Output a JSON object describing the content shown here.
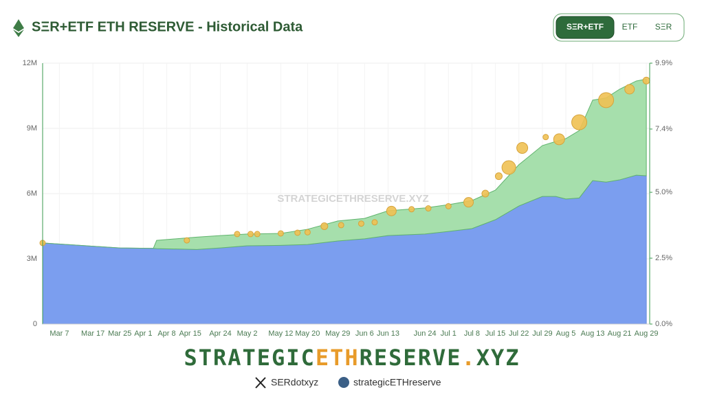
{
  "header": {
    "title": "SΞR+ETF ETH RESERVE - Historical Data",
    "buttons": [
      "SΞR+ETF",
      "ETF",
      "SΞR"
    ]
  },
  "chart_data": {
    "type": "stacked-area",
    "watermark": "STRATEGICETHRESERVE.XYZ",
    "x": [
      "Mar 2",
      "Mar 25",
      "Apr 4",
      "Apr 5",
      "Apr 17",
      "Apr 24",
      "May 2",
      "May 12",
      "May 20",
      "May 29",
      "Jun 6",
      "Jun 13",
      "Jun 24",
      "Jul 1",
      "Jul 8",
      "Jul 15",
      "Jul 22",
      "Jul 29",
      "Aug 2",
      "Aug 5",
      "Aug 9",
      "Aug 13",
      "Aug 17",
      "Aug 21",
      "Aug 26",
      "Aug 29"
    ],
    "series": [
      {
        "color": "#7b9eef",
        "values": [
          3.73,
          3.5,
          3.48,
          3.47,
          3.43,
          3.5,
          3.6,
          3.62,
          3.66,
          3.82,
          3.92,
          4.07,
          4.14,
          4.26,
          4.39,
          4.8,
          5.43,
          5.87,
          5.87,
          5.75,
          5.8,
          6.6,
          6.53,
          6.63,
          6.85,
          6.82
        ]
      },
      {
        "color": "#a6dfac",
        "values": [
          0,
          0,
          0,
          0.38,
          0.57,
          0.57,
          0.54,
          0.55,
          0.7,
          0.92,
          0.94,
          1.14,
          1.2,
          1.23,
          1.29,
          1.36,
          1.9,
          2.34,
          2.53,
          2.78,
          3.1,
          3.7,
          3.87,
          4.17,
          4.33,
          4.45
        ]
      }
    ],
    "bubbles": {
      "color": "#f0c153",
      "x": [
        "Mar 2",
        "Apr 14",
        "Apr 29",
        "May 3",
        "May 5",
        "May 12",
        "May 17",
        "May 20",
        "May 25",
        "May 30",
        "Jun 5",
        "Jun 9",
        "Jun 14",
        "Jun 20",
        "Jun 25",
        "Jul 1",
        "Jul 7",
        "Jul 12",
        "Jul 16",
        "Jul 19",
        "Jul 23",
        "Jul 30",
        "Aug 3",
        "Aug 9",
        "Aug 17",
        "Aug 24",
        "Aug 29"
      ],
      "values": [
        3.73,
        3.85,
        4.14,
        4.14,
        4.14,
        4.17,
        4.2,
        4.22,
        4.5,
        4.55,
        4.62,
        4.68,
        5.2,
        5.28,
        5.32,
        5.42,
        5.6,
        6.0,
        6.8,
        7.2,
        8.1,
        8.6,
        8.5,
        9.28,
        10.3,
        10.8,
        11.2
      ],
      "sizes": [
        4,
        4,
        4,
        4,
        4,
        4,
        4,
        4,
        5,
        4,
        4,
        4,
        7,
        4,
        4,
        4,
        7,
        5,
        5,
        10,
        8,
        4,
        8,
        11,
        11,
        7,
        5
      ]
    },
    "xlim": [
      "Mar 2",
      "Aug 30"
    ],
    "xticks": [
      "Mar 7",
      "Mar 17",
      "Mar 25",
      "Apr 1",
      "Apr 8",
      "Apr 15",
      "Apr 24",
      "May 2",
      "May 12",
      "May 20",
      "May 29",
      "Jun 6",
      "Jun 13",
      "Jun 24",
      "Jul 1",
      "Jul 8",
      "Jul 15",
      "Jul 22",
      "Jul 29",
      "Aug 5",
      "Aug 13",
      "Aug 21",
      "Aug 29"
    ],
    "ylim": [
      0,
      12
    ],
    "yticks": [
      {
        "value": 0,
        "label": "0"
      },
      {
        "value": 3,
        "label": "3M"
      },
      {
        "value": 6,
        "label": "6M"
      },
      {
        "value": 9,
        "label": "9M"
      },
      {
        "value": 12,
        "label": "12M"
      }
    ],
    "y2lim": [
      0,
      9.9
    ],
    "y2ticks": [
      {
        "value": 0,
        "label": "0.0%"
      },
      {
        "value": 2.5,
        "label": "2.5%"
      },
      {
        "value": 5,
        "label": "5.0%"
      },
      {
        "value": 7.4,
        "label": "7.4%"
      },
      {
        "value": 9.9,
        "label": "9.9%"
      }
    ],
    "grid": true
  },
  "footer": {
    "brand": [
      "STRATEGIC",
      "ETH",
      "RESERVE",
      ".",
      "XYZ"
    ],
    "social": [
      "SERdotxyz",
      "strategicETHreserve"
    ]
  }
}
